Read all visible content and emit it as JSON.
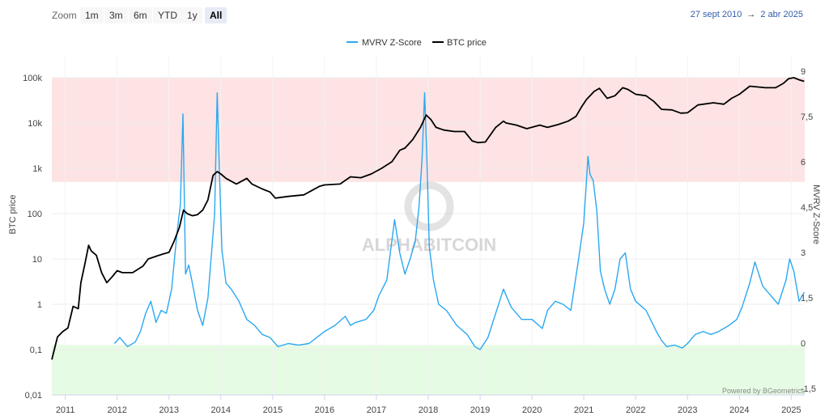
{
  "toolbar": {
    "zoom_label": "Zoom",
    "buttons": [
      "1m",
      "3m",
      "6m",
      "YTD",
      "1y",
      "All"
    ],
    "active": "All",
    "range_start": "27 sept 2010",
    "range_arrow": "→",
    "range_end": "2 abr 2025"
  },
  "watermark": "ALPHABITCOIN",
  "credit": "Powered by BGeometrics",
  "colors": {
    "mvrv": "#2aa8f2",
    "price": "#000000",
    "red_band": "#fde3e3",
    "green_band": "#e6fbe3"
  },
  "chart_data": {
    "type": "line",
    "legend": [
      "MVRV Z-Score",
      "BTC price"
    ],
    "ylabel_left": "BTC price",
    "ylabel_right": "MVRV Z-Score",
    "x_ticks": [
      "2011",
      "2012",
      "2013",
      "2014",
      "2015",
      "2016",
      "2017",
      "2018",
      "2019",
      "2020",
      "2021",
      "2022",
      "2023",
      "2024",
      "2025"
    ],
    "y_left_ticks": [
      "0,01",
      "0,1",
      "1",
      "10",
      "100",
      "1k",
      "10k",
      "100k"
    ],
    "y_left_scale": "log",
    "y_left_range": [
      0.01,
      100000
    ],
    "y_right_ticks": [
      "-1,5",
      "0",
      "1,5",
      "3",
      "4,5",
      "6",
      "7,5",
      "9"
    ],
    "y_right_range": [
      -1.5,
      9
    ],
    "bands": [
      {
        "axis": "right",
        "from": 5.55,
        "to": 9,
        "color": "#fde3e3"
      },
      {
        "axis": "right",
        "from": -1.5,
        "to": 0.15,
        "color": "#e6fbe3"
      }
    ],
    "series": [
      {
        "name": "BTC price",
        "axis": "left",
        "x": [
          2010.74,
          2010.85,
          2010.95,
          2011.05,
          2011.15,
          2011.25,
          2011.3,
          2011.38,
          2011.45,
          2011.5,
          2011.6,
          2011.7,
          2011.8,
          2011.9,
          2012.0,
          2012.1,
          2012.3,
          2012.5,
          2012.6,
          2012.8,
          2012.9,
          2013.0,
          2013.1,
          2013.2,
          2013.28,
          2013.35,
          2013.45,
          2013.55,
          2013.65,
          2013.75,
          2013.85,
          2013.93,
          2014.0,
          2014.1,
          2014.3,
          2014.5,
          2014.6,
          2014.8,
          2014.95,
          2015.05,
          2015.3,
          2015.6,
          2015.9,
          2016.0,
          2016.3,
          2016.5,
          2016.7,
          2016.9,
          2017.1,
          2017.3,
          2017.45,
          2017.55,
          2017.7,
          2017.85,
          2017.96,
          2018.05,
          2018.15,
          2018.3,
          2018.5,
          2018.7,
          2018.85,
          2018.96,
          2019.1,
          2019.3,
          2019.45,
          2019.5,
          2019.7,
          2019.9,
          2020.15,
          2020.3,
          2020.5,
          2020.7,
          2020.85,
          2020.95,
          2021.05,
          2021.2,
          2021.3,
          2021.45,
          2021.6,
          2021.75,
          2021.85,
          2022.0,
          2022.2,
          2022.35,
          2022.5,
          2022.7,
          2022.87,
          2023.0,
          2023.2,
          2023.5,
          2023.7,
          2023.85,
          2024.0,
          2024.2,
          2024.5,
          2024.7,
          2024.85,
          2024.95,
          2025.05,
          2025.15,
          2025.25
        ],
        "y": [
          0.06,
          0.19,
          0.25,
          0.3,
          0.9,
          0.8,
          3,
          8,
          20,
          15,
          12,
          5,
          3,
          4,
          5.5,
          5,
          5,
          7,
          10,
          12,
          13,
          14,
          25,
          50,
          120,
          100,
          90,
          95,
          120,
          200,
          700,
          850,
          750,
          600,
          450,
          600,
          450,
          350,
          300,
          220,
          240,
          260,
          400,
          430,
          450,
          650,
          620,
          750,
          1000,
          1400,
          2500,
          2800,
          4300,
          8000,
          15000,
          12000,
          8000,
          7000,
          6500,
          6500,
          4000,
          3700,
          3800,
          8000,
          11000,
          10000,
          9000,
          7500,
          9000,
          8000,
          9200,
          11000,
          14000,
          22000,
          33000,
          50000,
          58000,
          35000,
          40000,
          60000,
          55000,
          43000,
          40000,
          30000,
          20000,
          19500,
          16500,
          16800,
          25000,
          28000,
          26000,
          35000,
          43000,
          65000,
          60000,
          60000,
          75000,
          95000,
          100000,
          90000,
          83000
        ]
      },
      {
        "name": "MVRV Z-Score",
        "axis": "right",
        "x": [
          2011.95,
          2012.05,
          2012.2,
          2012.35,
          2012.45,
          2012.55,
          2012.65,
          2012.75,
          2012.85,
          2012.95,
          2013.05,
          2013.15,
          2013.22,
          2013.27,
          2013.32,
          2013.38,
          2013.45,
          2013.55,
          2013.65,
          2013.75,
          2013.82,
          2013.88,
          2013.93,
          2013.97,
          2014.02,
          2014.1,
          2014.2,
          2014.35,
          2014.5,
          2014.65,
          2014.8,
          2014.95,
          2015.1,
          2015.3,
          2015.5,
          2015.7,
          2015.85,
          2016.0,
          2016.2,
          2016.4,
          2016.5,
          2016.6,
          2016.8,
          2016.95,
          2017.05,
          2017.2,
          2017.35,
          2017.45,
          2017.55,
          2017.65,
          2017.75,
          2017.82,
          2017.88,
          2017.93,
          2017.97,
          2018.02,
          2018.1,
          2018.2,
          2018.35,
          2018.55,
          2018.75,
          2018.9,
          2019.0,
          2019.15,
          2019.3,
          2019.45,
          2019.5,
          2019.6,
          2019.8,
          2020.0,
          2020.2,
          2020.3,
          2020.45,
          2020.6,
          2020.75,
          2020.9,
          2021.0,
          2021.08,
          2021.12,
          2021.18,
          2021.25,
          2021.32,
          2021.4,
          2021.5,
          2021.6,
          2021.7,
          2021.8,
          2021.9,
          2022.0,
          2022.2,
          2022.4,
          2022.5,
          2022.6,
          2022.75,
          2022.9,
          2023.0,
          2023.15,
          2023.3,
          2023.45,
          2023.6,
          2023.8,
          2023.95,
          2024.05,
          2024.2,
          2024.3,
          2024.45,
          2024.6,
          2024.75,
          2024.9,
          2024.97,
          2025.05,
          2025.15,
          2025.25
        ],
        "y": [
          0.2,
          0.4,
          0.1,
          0.25,
          0.6,
          1.2,
          1.6,
          0.9,
          1.3,
          1.2,
          2.0,
          3.8,
          4.8,
          7.8,
          2.5,
          2.8,
          2.2,
          1.3,
          0.8,
          1.7,
          3.2,
          4.5,
          8.5,
          6.0,
          3.3,
          2.2,
          2.0,
          1.6,
          1.0,
          0.8,
          0.5,
          0.4,
          0.1,
          0.2,
          0.15,
          0.2,
          0.4,
          0.6,
          0.8,
          1.1,
          0.8,
          0.9,
          1.0,
          1.3,
          1.8,
          2.3,
          4.3,
          3.2,
          2.5,
          3.0,
          3.6,
          4.7,
          6.3,
          8.5,
          6.5,
          3.4,
          2.3,
          1.5,
          1.3,
          0.8,
          0.5,
          0.1,
          0.0,
          0.4,
          1.2,
          2.0,
          1.8,
          1.4,
          1.0,
          1.0,
          0.7,
          1.3,
          1.6,
          1.5,
          1.3,
          3.0,
          4.2,
          6.4,
          5.8,
          5.6,
          4.6,
          2.6,
          2.0,
          1.5,
          2.0,
          3.0,
          3.2,
          2.0,
          1.6,
          1.3,
          0.6,
          0.3,
          0.1,
          0.15,
          0.05,
          0.2,
          0.5,
          0.6,
          0.5,
          0.6,
          0.8,
          1.0,
          1.4,
          2.2,
          2.9,
          2.1,
          1.8,
          1.5,
          2.3,
          3.0,
          2.6,
          1.6,
          1.9
        ]
      }
    ]
  }
}
